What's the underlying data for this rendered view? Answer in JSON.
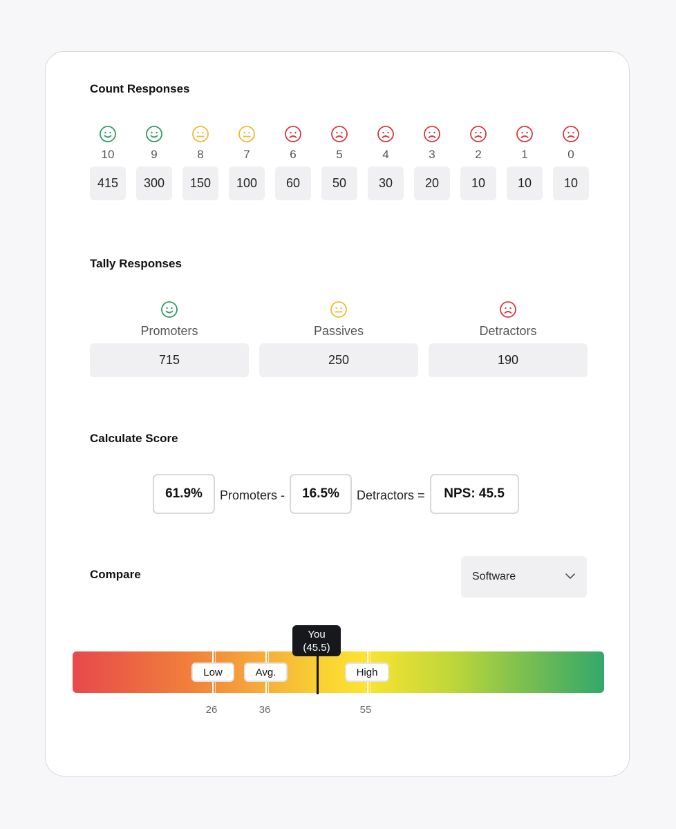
{
  "colors": {
    "promoter": "#2e9a63",
    "passive": "#f1b82d",
    "detractor": "#d9383c"
  },
  "count_section": {
    "title": "Count Responses",
    "items": [
      {
        "score": "10",
        "count": "415",
        "face": "smiley-face-icon"
      },
      {
        "score": "9",
        "count": "300",
        "face": "smiley-face-icon"
      },
      {
        "score": "8",
        "count": "150",
        "face": "neutral-face-icon"
      },
      {
        "score": "7",
        "count": "100",
        "face": "neutral-face-icon"
      },
      {
        "score": "6",
        "count": "60",
        "face": "frowning-face-icon"
      },
      {
        "score": "5",
        "count": "50",
        "face": "frowning-face-icon"
      },
      {
        "score": "4",
        "count": "30",
        "face": "frowning-face-icon"
      },
      {
        "score": "3",
        "count": "20",
        "face": "frowning-face-icon"
      },
      {
        "score": "2",
        "count": "10",
        "face": "frowning-face-icon"
      },
      {
        "score": "1",
        "count": "10",
        "face": "frowning-face-icon"
      },
      {
        "score": "0",
        "count": "10",
        "face": "frowning-face-icon"
      }
    ]
  },
  "tally_section": {
    "title": "Tally Responses",
    "items": [
      {
        "label": "Promoters",
        "count": "715",
        "face": "smiley-face-icon"
      },
      {
        "label": "Passives",
        "count": "250",
        "face": "neutral-face-icon"
      },
      {
        "label": "Detractors",
        "count": "190",
        "face": "frowning-face-icon"
      }
    ]
  },
  "score_section": {
    "title": "Calculate Score",
    "promoters_pct": "61.9%",
    "promoters_text": "Promoters -",
    "detractors_pct": "16.5%",
    "detractors_text": "Detractors =",
    "nps_result": "NPS: 45.5"
  },
  "compare_section": {
    "title": "Compare",
    "dropdown_value": "Software",
    "low_label": "Low",
    "avg_label": "Avg.",
    "high_label": "High",
    "low_value": "26",
    "avg_value": "36",
    "high_value": "55",
    "you_label": "You",
    "you_value": "(45.5)",
    "chevron_icon": "chevron-down-icon"
  }
}
